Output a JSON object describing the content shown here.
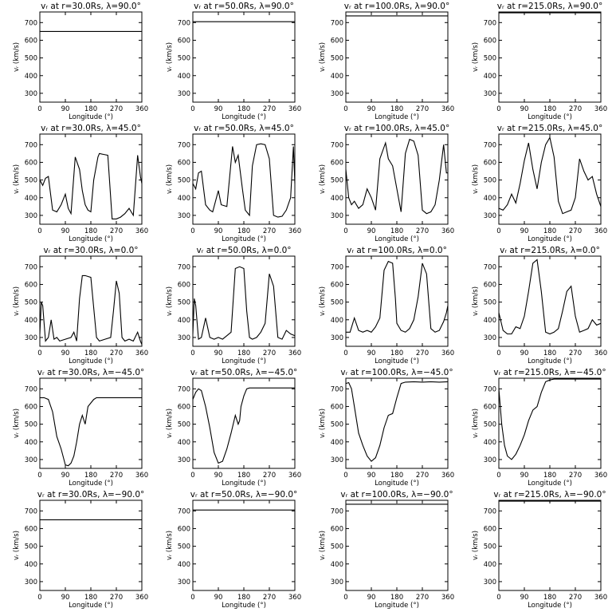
{
  "xlabel": "Longitude (°)",
  "ylabel": "vᵣ (km/s)",
  "xticks": [
    0,
    90,
    180,
    270,
    360
  ],
  "yticks": [
    300,
    400,
    500,
    600,
    700
  ],
  "xlim": [
    0,
    360
  ],
  "ylim": [
    250,
    760
  ],
  "line_color": "#000000",
  "chart_data": [
    {
      "type": "line",
      "title": "vᵣ at r=30.0Rs, λ=90.0°",
      "x": [
        0,
        360
      ],
      "y": [
        650,
        650
      ]
    },
    {
      "type": "line",
      "title": "vᵣ at r=50.0Rs, λ=90.0°",
      "x": [
        0,
        360
      ],
      "y": [
        705,
        705
      ]
    },
    {
      "type": "line",
      "title": "vᵣ at r=100.0Rs, λ=90.0°",
      "x": [
        0,
        360
      ],
      "y": [
        738,
        738
      ]
    },
    {
      "type": "line",
      "title": "vᵣ at r=215.0Rs, λ=90.0°",
      "x": [
        0,
        360
      ],
      "y": [
        755,
        755
      ]
    },
    {
      "type": "line",
      "title": "vᵣ at r=30.0Rs, λ=45.0°",
      "x": [
        0,
        10,
        20,
        30,
        45,
        60,
        75,
        90,
        100,
        110,
        125,
        140,
        150,
        160,
        170,
        180,
        190,
        205,
        210,
        225,
        240,
        255,
        270,
        285,
        300,
        315,
        330,
        345,
        355,
        360
      ],
      "y": [
        500,
        470,
        510,
        520,
        330,
        320,
        360,
        420,
        340,
        310,
        630,
        560,
        440,
        360,
        330,
        320,
        500,
        630,
        650,
        645,
        640,
        280,
        280,
        290,
        310,
        340,
        300,
        640,
        520,
        480
      ]
    },
    {
      "type": "line",
      "title": "vᵣ at r=50.0Rs, λ=45.0°",
      "x": [
        0,
        10,
        20,
        30,
        45,
        60,
        70,
        90,
        100,
        120,
        140,
        150,
        160,
        175,
        185,
        200,
        210,
        225,
        240,
        255,
        270,
        285,
        300,
        315,
        330,
        345,
        355,
        360
      ],
      "y": [
        480,
        450,
        540,
        550,
        360,
        330,
        320,
        440,
        360,
        350,
        690,
        600,
        640,
        450,
        330,
        300,
        580,
        700,
        705,
        700,
        620,
        300,
        290,
        295,
        330,
        400,
        690,
        480
      ]
    },
    {
      "type": "line",
      "title": "vᵣ at r=100.0Rs, λ=45.0°",
      "x": [
        0,
        10,
        20,
        30,
        45,
        60,
        75,
        90,
        105,
        120,
        140,
        150,
        165,
        180,
        195,
        210,
        225,
        240,
        255,
        270,
        285,
        300,
        315,
        330,
        345,
        355,
        360
      ],
      "y": [
        560,
        400,
        360,
        380,
        340,
        360,
        450,
        400,
        330,
        620,
        710,
        620,
        580,
        450,
        320,
        650,
        730,
        720,
        640,
        330,
        310,
        320,
        360,
        500,
        700,
        540,
        540
      ]
    },
    {
      "type": "line",
      "title": "vᵣ at r=215.0Rs, λ=45.0°",
      "x": [
        0,
        15,
        30,
        45,
        60,
        75,
        90,
        105,
        120,
        135,
        150,
        165,
        180,
        195,
        210,
        225,
        240,
        255,
        270,
        285,
        300,
        315,
        330,
        345,
        360
      ],
      "y": [
        340,
        330,
        360,
        420,
        370,
        480,
        610,
        710,
        560,
        450,
        600,
        700,
        740,
        630,
        380,
        310,
        320,
        330,
        400,
        620,
        550,
        500,
        520,
        420,
        350
      ]
    },
    {
      "type": "line",
      "title": "vᵣ at r=30.0Rs, λ=0.0°",
      "x": [
        0,
        5,
        10,
        20,
        30,
        40,
        50,
        60,
        70,
        90,
        110,
        120,
        130,
        140,
        150,
        160,
        180,
        200,
        210,
        230,
        250,
        260,
        270,
        280,
        290,
        300,
        315,
        330,
        345,
        355,
        360
      ],
      "y": [
        320,
        500,
        480,
        280,
        300,
        400,
        290,
        300,
        280,
        290,
        300,
        330,
        280,
        520,
        650,
        650,
        640,
        300,
        280,
        290,
        300,
        450,
        620,
        550,
        300,
        280,
        290,
        280,
        330,
        280,
        260
      ]
    },
    {
      "type": "line",
      "title": "vᵣ at r=50.0Rs, λ=0.0°",
      "x": [
        0,
        5,
        10,
        20,
        30,
        45,
        60,
        75,
        90,
        105,
        120,
        135,
        150,
        165,
        180,
        190,
        200,
        210,
        225,
        240,
        255,
        270,
        285,
        300,
        315,
        330,
        345,
        360
      ],
      "y": [
        320,
        520,
        480,
        290,
        300,
        410,
        300,
        290,
        300,
        290,
        310,
        330,
        690,
        700,
        690,
        450,
        300,
        290,
        300,
        330,
        380,
        660,
        590,
        300,
        290,
        340,
        320,
        310
      ]
    },
    {
      "type": "line",
      "title": "vᵣ at r=100.0Rs, λ=0.0°",
      "x": [
        0,
        15,
        30,
        45,
        60,
        75,
        90,
        105,
        120,
        135,
        150,
        165,
        175,
        180,
        195,
        210,
        225,
        240,
        255,
        270,
        285,
        300,
        315,
        330,
        345,
        355,
        360
      ],
      "y": [
        330,
        330,
        410,
        340,
        330,
        340,
        330,
        360,
        410,
        680,
        730,
        720,
        520,
        380,
        340,
        330,
        350,
        400,
        530,
        720,
        660,
        350,
        330,
        340,
        390,
        440,
        480
      ]
    },
    {
      "type": "line",
      "title": "vᵣ at r=215.0Rs, λ=0.0°",
      "x": [
        0,
        15,
        30,
        45,
        60,
        75,
        90,
        105,
        120,
        135,
        150,
        165,
        180,
        195,
        210,
        225,
        240,
        255,
        270,
        285,
        300,
        315,
        330,
        345,
        360
      ],
      "y": [
        440,
        340,
        320,
        320,
        360,
        350,
        420,
        560,
        720,
        740,
        560,
        330,
        320,
        330,
        350,
        450,
        560,
        590,
        420,
        330,
        340,
        350,
        400,
        370,
        380
      ]
    },
    {
      "type": "line",
      "title": "vᵣ at r=30.0Rs, λ=−45.0°",
      "x": [
        0,
        15,
        30,
        45,
        60,
        75,
        90,
        100,
        110,
        120,
        130,
        140,
        150,
        160,
        170,
        180,
        190,
        200,
        220,
        240,
        270,
        300,
        330,
        360
      ],
      "y": [
        650,
        650,
        640,
        570,
        430,
        360,
        270,
        265,
        280,
        320,
        400,
        500,
        550,
        500,
        600,
        620,
        640,
        650,
        650,
        650,
        650,
        650,
        650,
        650
      ]
    },
    {
      "type": "line",
      "title": "vᵣ at r=50.0Rs, λ=−45.0°",
      "x": [
        0,
        10,
        20,
        30,
        45,
        60,
        75,
        90,
        105,
        120,
        135,
        150,
        160,
        165,
        170,
        180,
        190,
        200,
        210,
        240,
        270,
        300,
        330,
        360
      ],
      "y": [
        640,
        680,
        700,
        690,
        600,
        480,
        340,
        280,
        290,
        360,
        450,
        550,
        500,
        520,
        600,
        660,
        700,
        705,
        705,
        705,
        705,
        705,
        705,
        705
      ]
    },
    {
      "type": "line",
      "title": "vᵣ at r=100.0Rs, λ=−45.0°",
      "x": [
        0,
        10,
        20,
        30,
        45,
        60,
        75,
        90,
        105,
        120,
        135,
        150,
        165,
        180,
        195,
        210,
        240,
        270,
        300,
        330,
        360
      ],
      "y": [
        730,
        735,
        700,
        600,
        450,
        380,
        320,
        290,
        310,
        380,
        480,
        550,
        560,
        650,
        730,
        738,
        740,
        738,
        740,
        738,
        740
      ]
    },
    {
      "type": "line",
      "title": "vᵣ at r=215.0Rs, λ=−45.0°",
      "x": [
        0,
        10,
        20,
        30,
        45,
        60,
        75,
        90,
        105,
        120,
        135,
        150,
        165,
        180,
        195,
        210,
        240,
        270,
        300,
        330,
        360
      ],
      "y": [
        700,
        500,
        380,
        320,
        300,
        330,
        380,
        440,
        520,
        580,
        600,
        680,
        740,
        750,
        755,
        755,
        755,
        755,
        755,
        755,
        755
      ]
    },
    {
      "type": "line",
      "title": "vᵣ at r=30.0Rs, λ=−90.0°",
      "x": [
        0,
        360
      ],
      "y": [
        650,
        650
      ]
    },
    {
      "type": "line",
      "title": "vᵣ at r=50.0Rs, λ=−90.0°",
      "x": [
        0,
        360
      ],
      "y": [
        705,
        705
      ]
    },
    {
      "type": "line",
      "title": "vᵣ at r=100.0Rs, λ=−90.0°",
      "x": [
        0,
        360
      ],
      "y": [
        738,
        738
      ]
    },
    {
      "type": "line",
      "title": "vᵣ at r=215.0Rs, λ=−90.0°",
      "x": [
        0,
        360
      ],
      "y": [
        755,
        755
      ]
    }
  ]
}
